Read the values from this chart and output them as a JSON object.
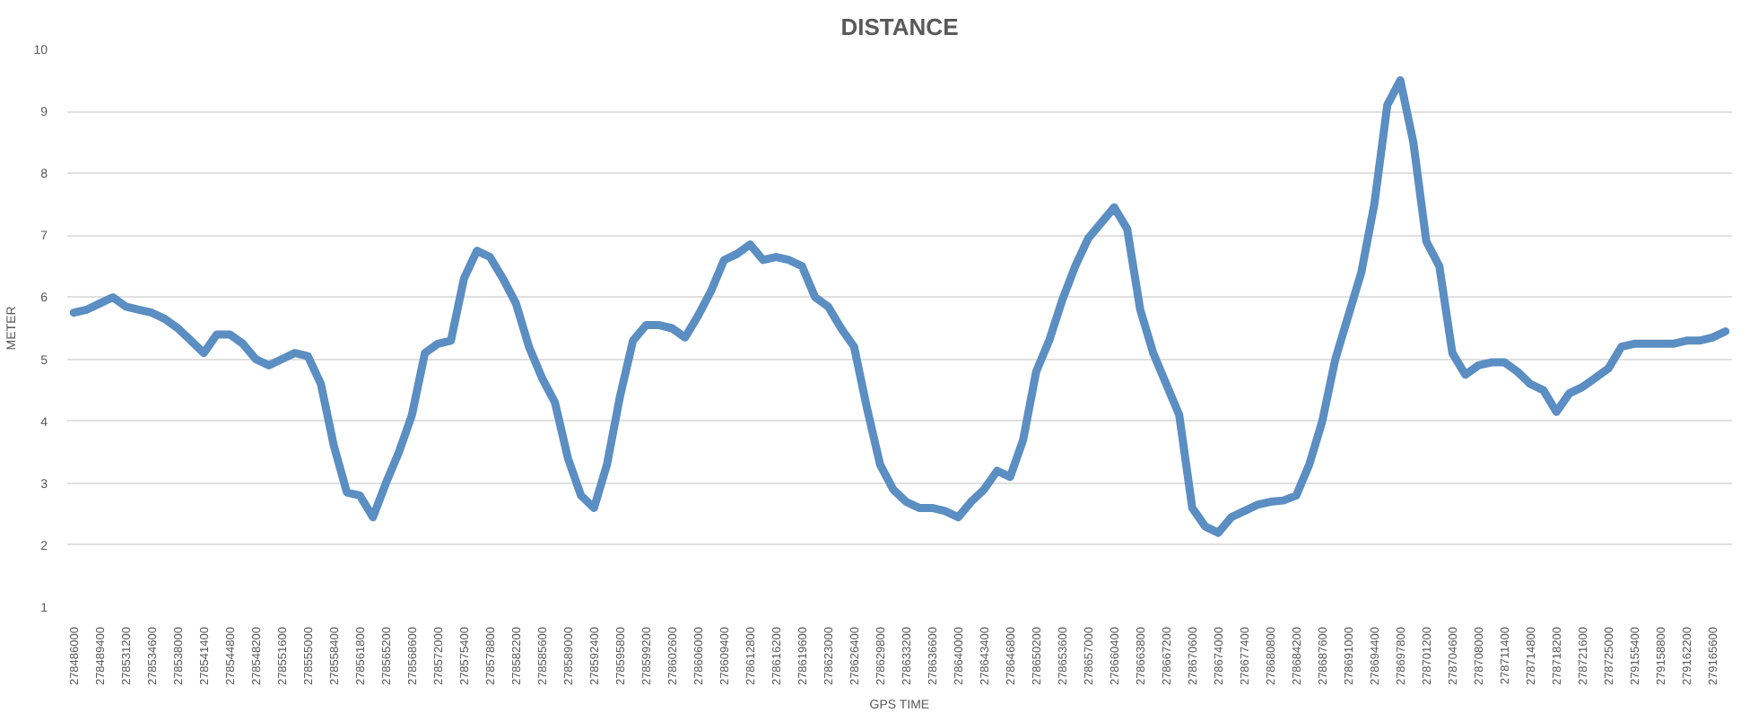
{
  "chart_data": {
    "type": "line",
    "title": "DISTANCE",
    "xlabel": "GPS TIME",
    "ylabel": "METER",
    "categories": [
      "278486000",
      null,
      "278489400",
      null,
      "278531200",
      null,
      "278534600",
      null,
      "278538000",
      null,
      "278541400",
      null,
      "278544800",
      null,
      "278548200",
      null,
      "278551600",
      null,
      "278555000",
      null,
      "278558400",
      null,
      "278561800",
      null,
      "278565200",
      null,
      "278568600",
      null,
      "278572000",
      null,
      "278575400",
      null,
      "278578800",
      null,
      "278582200",
      null,
      "278585600",
      null,
      "278589000",
      null,
      "278592400",
      null,
      "278595800",
      null,
      "278599200",
      null,
      "278602600",
      null,
      "278606000",
      null,
      "278609400",
      null,
      "278612800",
      null,
      "278616200",
      null,
      "278619600",
      null,
      "278623000",
      null,
      "278626400",
      null,
      "278629800",
      null,
      "278633200",
      null,
      "278636600",
      null,
      "278640000",
      null,
      "278643400",
      null,
      "278646800",
      null,
      "278650200",
      null,
      "278653600",
      null,
      "278657000",
      null,
      "278660400",
      null,
      "278663800",
      null,
      "278667200",
      null,
      "278670600",
      null,
      "278674000",
      null,
      "278677400",
      null,
      "278680800",
      null,
      "278684200",
      null,
      "278687600",
      null,
      "278691000",
      null,
      "278694400",
      null,
      "278697800",
      null,
      "278701200",
      null,
      "278704600",
      null,
      "278708000",
      null,
      "278711400",
      null,
      "278714800",
      null,
      "278718200",
      null,
      "278721600",
      null,
      "278725000",
      null,
      "279155400",
      null,
      "279158800",
      null,
      "279162200",
      null,
      "279165600",
      null
    ],
    "series": [
      {
        "color": "#5b8ec2",
        "values": [
          5.75,
          5.8,
          5.9,
          6.0,
          5.85,
          5.8,
          5.75,
          5.65,
          5.5,
          5.3,
          5.1,
          5.4,
          5.4,
          5.25,
          5.0,
          4.9,
          5.0,
          5.1,
          5.05,
          4.6,
          3.6,
          2.85,
          2.8,
          2.45,
          3.0,
          3.5,
          4.1,
          5.1,
          5.25,
          5.3,
          6.3,
          6.75,
          6.65,
          6.3,
          5.9,
          5.2,
          4.7,
          4.3,
          3.4,
          2.8,
          2.6,
          3.3,
          4.4,
          5.3,
          5.55,
          5.55,
          5.5,
          5.35,
          5.7,
          6.1,
          6.6,
          6.7,
          6.85,
          6.6,
          6.65,
          6.6,
          6.5,
          6.0,
          5.85,
          5.5,
          5.2,
          4.2,
          3.3,
          2.9,
          2.7,
          2.6,
          2.6,
          2.55,
          2.45,
          2.7,
          2.9,
          3.2,
          3.1,
          3.7,
          4.8,
          5.3,
          5.95,
          6.5,
          6.95,
          7.2,
          7.45,
          7.1,
          5.8,
          5.1,
          4.6,
          4.1,
          2.6,
          2.3,
          2.2,
          2.45,
          2.55,
          2.65,
          2.7,
          2.72,
          2.8,
          3.3,
          4.0,
          5.0,
          5.7,
          6.4,
          7.5,
          9.1,
          9.5,
          8.5,
          6.9,
          6.5,
          5.1,
          4.75,
          4.9,
          4.95,
          4.95,
          4.8,
          4.6,
          4.5,
          4.15,
          4.45,
          4.55,
          4.7,
          4.85,
          5.2,
          5.25,
          5.25,
          5.25,
          5.25,
          5.3,
          5.3,
          5.35,
          5.45
        ]
      }
    ],
    "ylim": [
      1,
      10
    ],
    "yticks": [
      1,
      2,
      3,
      4,
      5,
      6,
      7,
      8,
      9,
      10
    ],
    "grid": "y",
    "marker": "none",
    "line_style": "solid"
  }
}
